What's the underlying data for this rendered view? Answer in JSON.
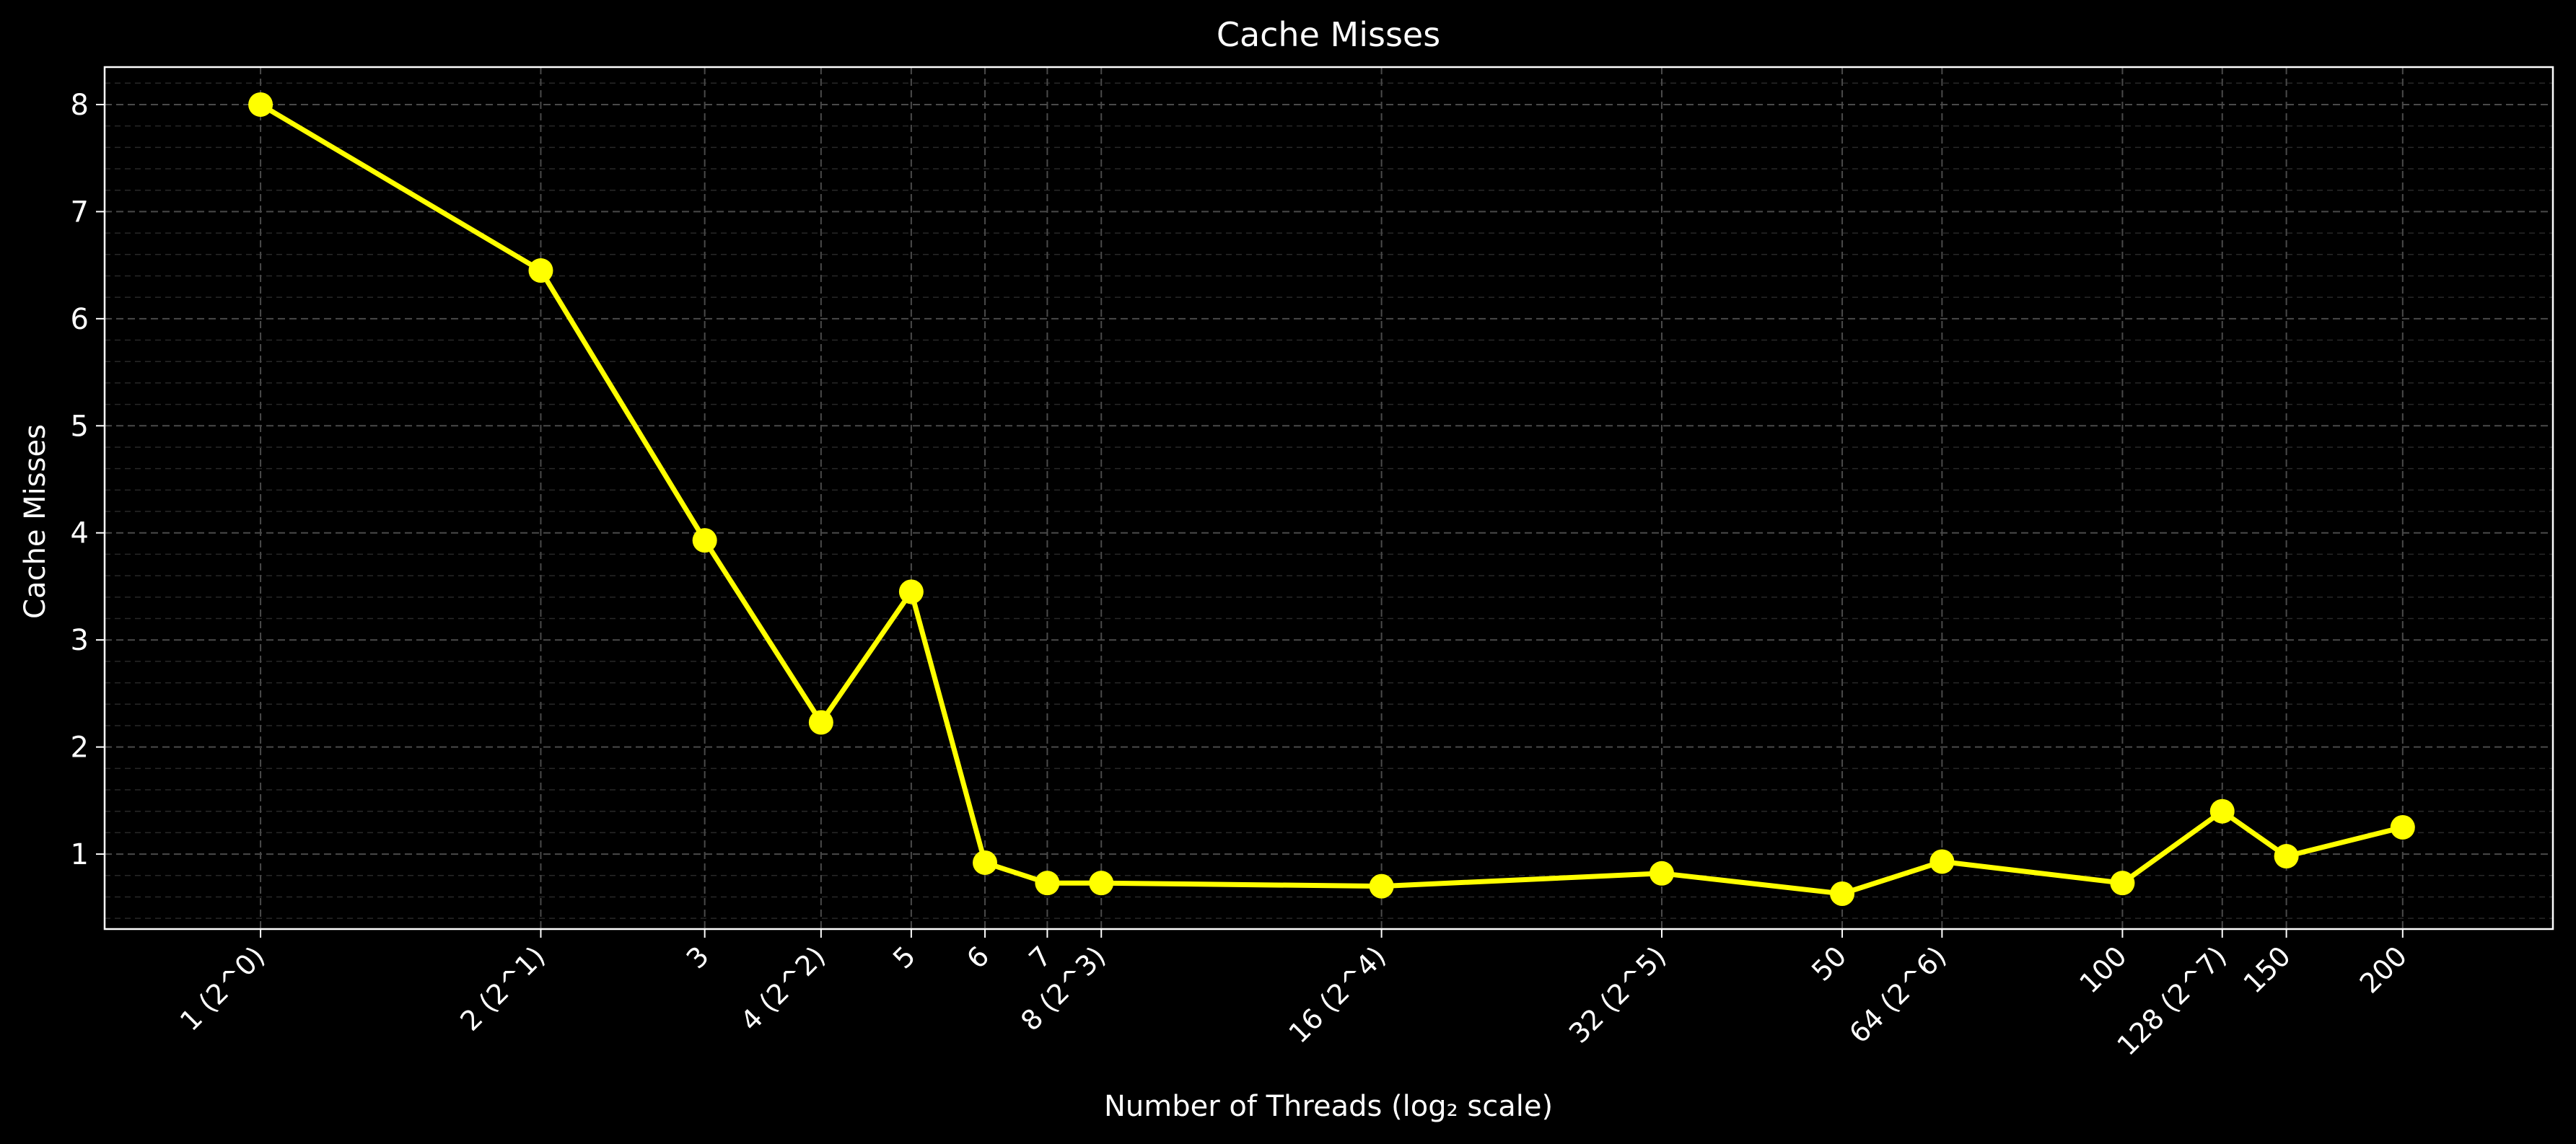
{
  "chart_data": {
    "type": "line",
    "title": "Cache Misses",
    "xlabel": "Number of Threads (log₂ scale)",
    "ylabel": "Cache Misses",
    "x_scale": "log2",
    "xlim": [
      0.68,
      290
    ],
    "ylim": [
      0.3,
      8.35
    ],
    "y_ticks": [
      1,
      2,
      3,
      4,
      5,
      6,
      7,
      8
    ],
    "x_ticks": [
      {
        "value": 1,
        "label": "1 (2^0)"
      },
      {
        "value": 2,
        "label": "2 (2^1)"
      },
      {
        "value": 3,
        "label": "3"
      },
      {
        "value": 4,
        "label": "4 (2^2)"
      },
      {
        "value": 5,
        "label": "5"
      },
      {
        "value": 6,
        "label": "6"
      },
      {
        "value": 7,
        "label": "7"
      },
      {
        "value": 8,
        "label": "8 (2^3)"
      },
      {
        "value": 16,
        "label": "16 (2^4)"
      },
      {
        "value": 32,
        "label": "32 (2^5)"
      },
      {
        "value": 50,
        "label": "50"
      },
      {
        "value": 64,
        "label": "64 (2^6)"
      },
      {
        "value": 100,
        "label": "100"
      },
      {
        "value": 128,
        "label": "128 (2^7)"
      },
      {
        "value": 150,
        "label": "150"
      },
      {
        "value": 200,
        "label": "200"
      }
    ],
    "grid": true,
    "series": [
      {
        "color": "#ffff00",
        "x": [
          1,
          2,
          3,
          4,
          5,
          6,
          7,
          8,
          16,
          32,
          50,
          64,
          100,
          128,
          150,
          200
        ],
        "y": [
          8.0,
          6.45,
          3.93,
          2.23,
          3.45,
          0.92,
          0.73,
          0.73,
          0.7,
          0.82,
          0.63,
          0.93,
          0.73,
          1.4,
          0.98,
          1.25
        ]
      }
    ],
    "colors": {
      "background": "#000000",
      "axes": "#ffffff",
      "grid": "#3a3a3a",
      "line": "#ffff00"
    }
  }
}
